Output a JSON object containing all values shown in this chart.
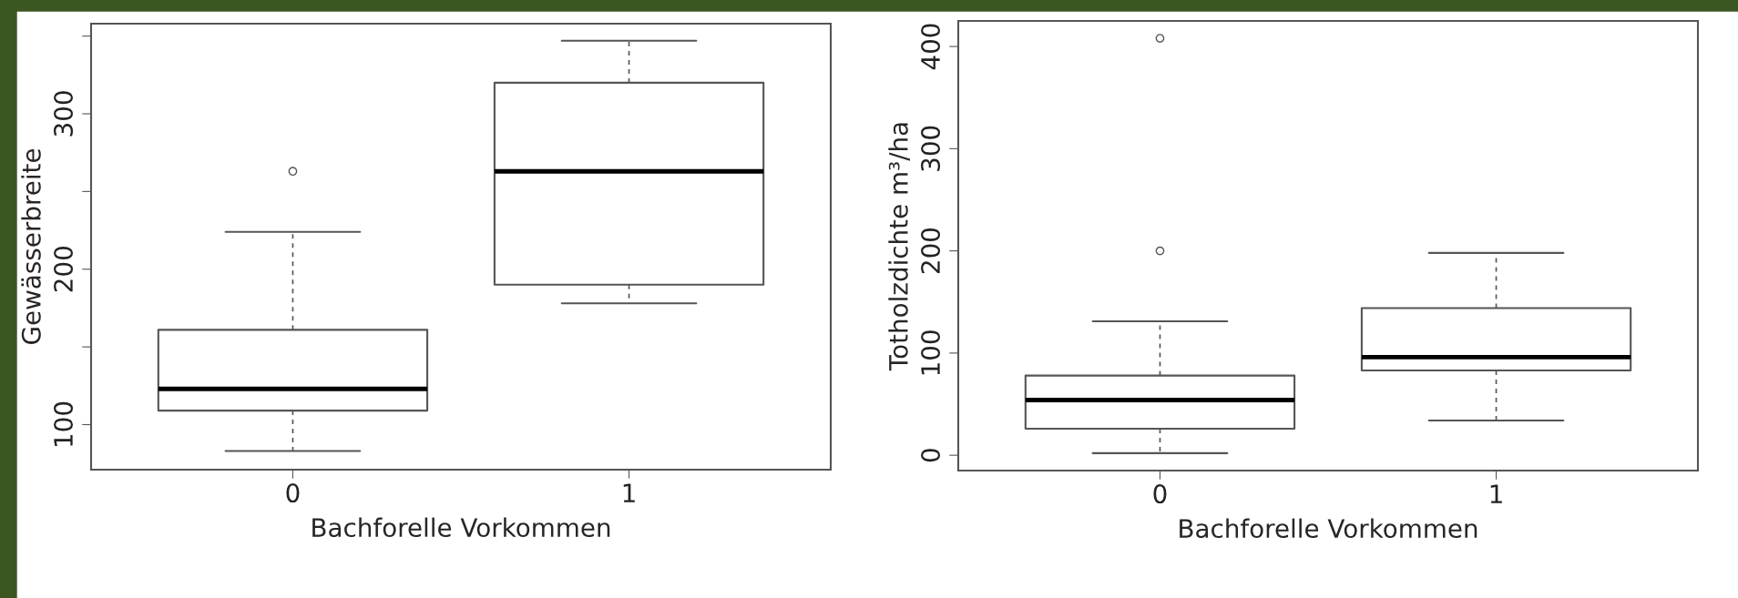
{
  "chart_data": [
    {
      "type": "box",
      "categories": [
        "0",
        "1"
      ],
      "xlabel": "Bachforelle Vorkommen",
      "ylabel": "Gewässerbreite",
      "boxes": [
        {
          "low": 83,
          "q1": 109,
          "median": 123,
          "q3": 161,
          "high": 224,
          "outliers": [
            263
          ]
        },
        {
          "low": 178,
          "q1": 190,
          "median": 263,
          "q3": 320,
          "high": 347
        }
      ],
      "ylim": [
        71,
        358
      ],
      "yticks": [
        100,
        {
          "value": 150,
          "label": null
        },
        200,
        {
          "value": 250,
          "label": null
        },
        300,
        {
          "value": 350,
          "label": null
        }
      ]
    },
    {
      "type": "box",
      "categories": [
        "0",
        "1"
      ],
      "xlabel": "Bachforelle Vorkommen",
      "ylabel": "Totholzdichte m³/ha",
      "boxes": [
        {
          "low": 2,
          "q1": 26,
          "median": 54,
          "q3": 78,
          "high": 131,
          "outliers": [
            200,
            408
          ]
        },
        {
          "low": 34,
          "q1": 83,
          "median": 96,
          "q3": 144,
          "high": 198
        }
      ],
      "ylim": [
        -15,
        425
      ],
      "yticks": [
        0,
        100,
        200,
        300,
        400
      ]
    }
  ]
}
